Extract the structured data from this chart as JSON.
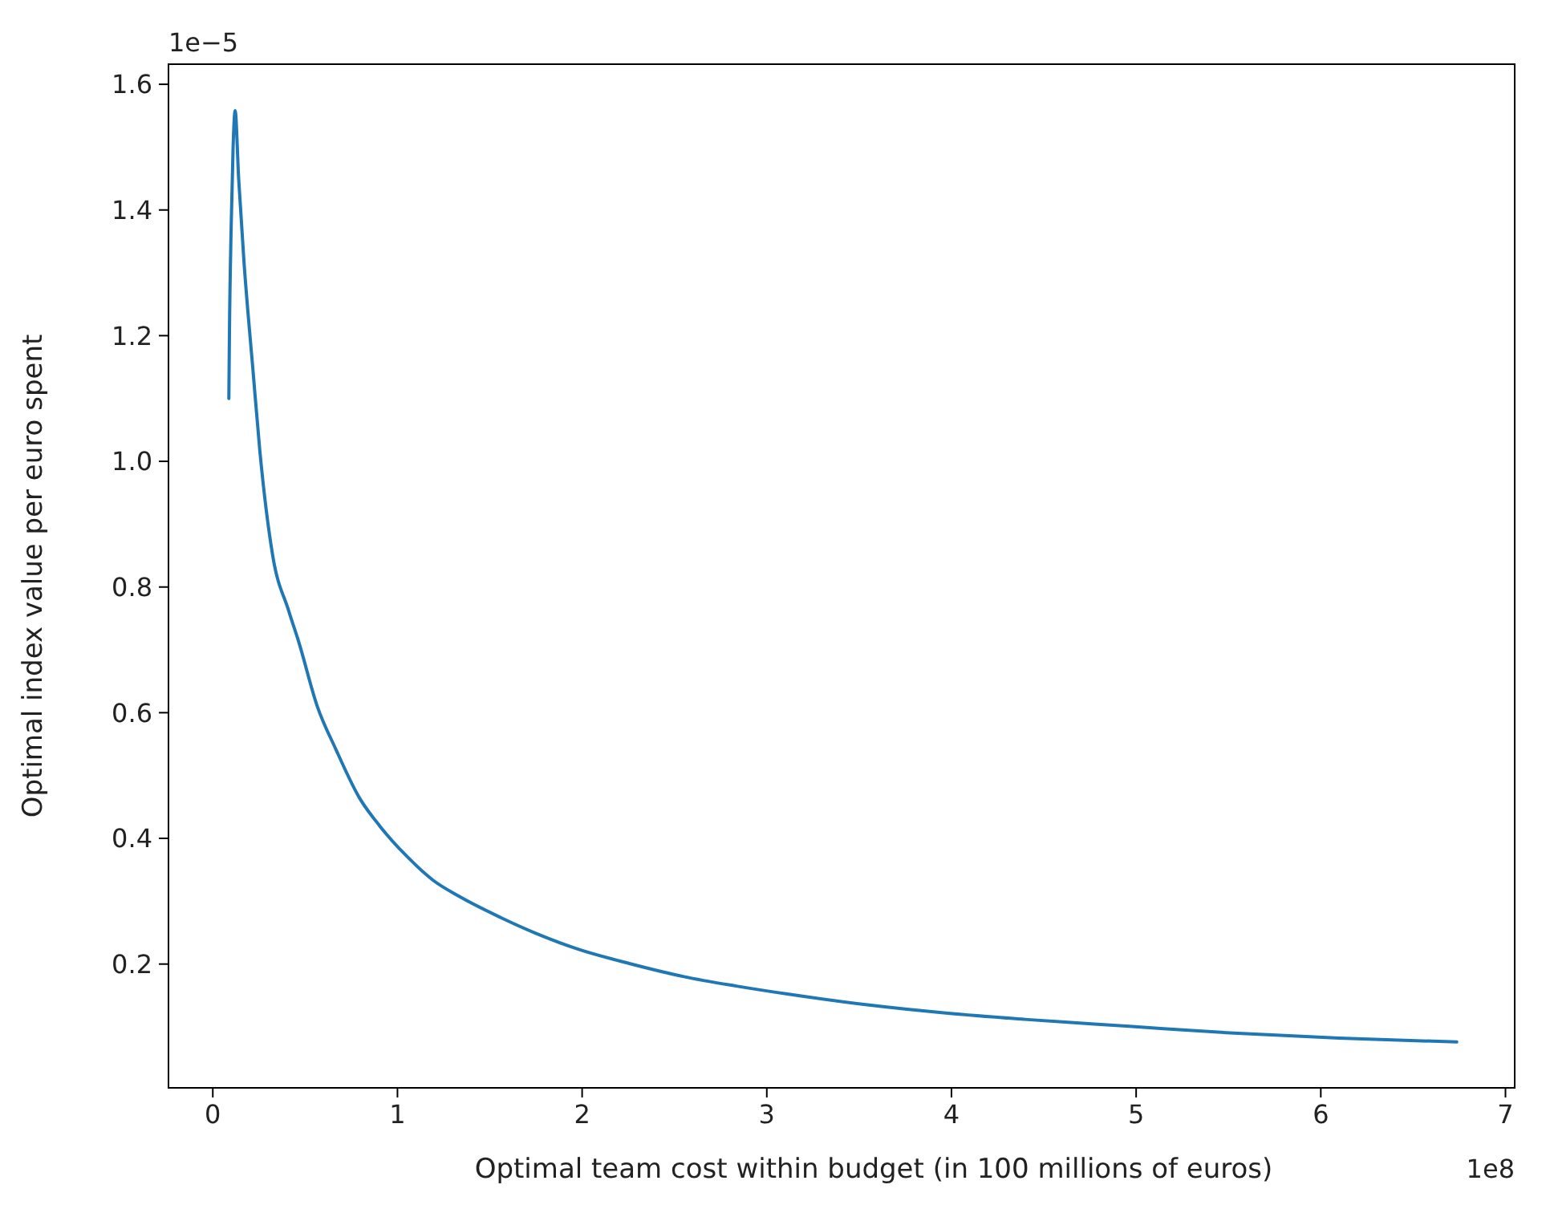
{
  "chart_data": {
    "type": "line",
    "xlabel": "Optimal team cost within budget (in 100 millions of euros)",
    "ylabel": "Optimal index value per euro spent",
    "annotations": [
      "1e−5",
      "1e8"
    ],
    "xlim": [
      -0.24,
      7.05
    ],
    "xticks": [
      0,
      1,
      2,
      3,
      4,
      5,
      6,
      7
    ],
    "ylim": [
      0.003,
      1.632
    ],
    "yticks": [
      0.2,
      0.4,
      0.6,
      0.8,
      {
        "value": 1,
        "label": "1.0"
      },
      1.2,
      1.4,
      1.6
    ],
    "grid": false,
    "marker": "none",
    "line_style": "solid",
    "series": [
      {
        "color": "#1f77b4",
        "x": [
          0.087,
          0.09,
          0.1,
          0.11,
          0.121,
          0.14,
          0.169,
          0.217,
          0.254,
          0.325,
          0.41,
          0.466,
          0.566,
          0.666,
          0.793,
          0.906,
          1.049,
          1.19,
          1.332,
          1.559,
          1.757,
          1.985,
          2.268,
          2.551,
          2.835,
          3.119,
          3.545,
          3.97,
          4.396,
          4.963,
          5.53,
          6.1,
          6.736
        ],
        "values": [
          1.1,
          1.2,
          1.38,
          1.5,
          1.558,
          1.45,
          1.317,
          1.147,
          1.019,
          0.849,
          0.763,
          0.712,
          0.61,
          0.542,
          0.465,
          0.419,
          0.372,
          0.334,
          0.308,
          0.274,
          0.248,
          0.223,
          0.2,
          0.18,
          0.165,
          0.152,
          0.135,
          0.122,
          0.112,
          0.101,
          0.09,
          0.082,
          0.076
        ]
      }
    ]
  }
}
